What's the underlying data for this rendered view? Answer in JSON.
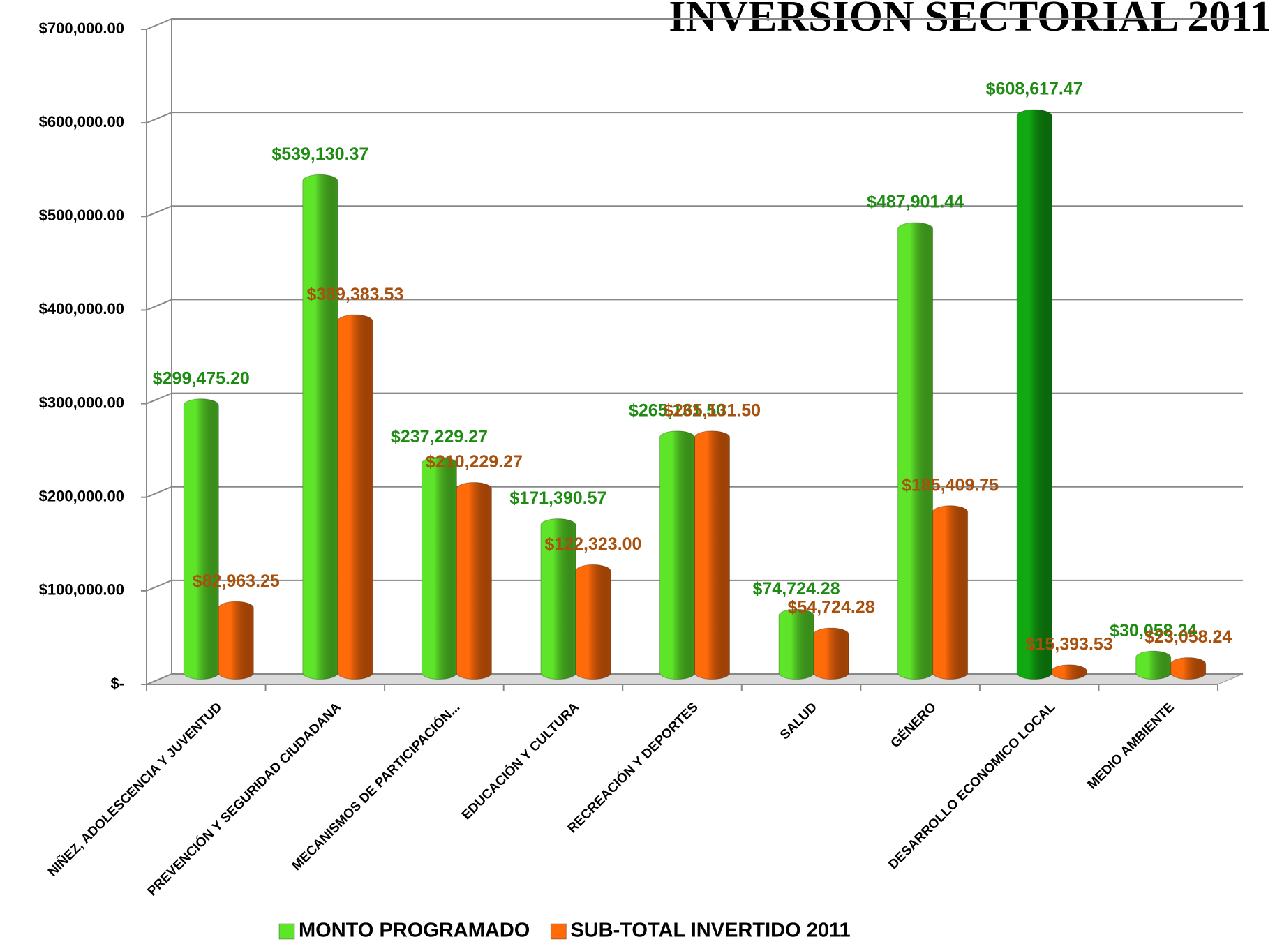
{
  "chart_data": {
    "type": "bar",
    "title": "INVERSION SECTORIAL 2011",
    "categories": [
      "NIÑEZ, ADOLESCENCIA Y JUVENTUD",
      "PREVENCIÓN Y SEGURIDAD CIUDADANA",
      "MECANISMOS DE PARTICIPACIÓN...",
      "EDUCACIÓN Y CULTURA",
      "RECREACIÓN Y DEPORTES",
      "SALUD",
      "GÉNERO",
      "DESARROLLO ECONOMICO  LOCAL",
      "MEDIO AMBIENTE"
    ],
    "series": [
      {
        "name": "MONTO PROGRAMADO",
        "color": "#5ee52a",
        "colors": [
          "#5ee52a",
          "#5ee52a",
          "#5ee52a",
          "#5ee52a",
          "#5ee52a",
          "#5ee52a",
          "#5ee52a",
          "#12a812",
          "#5ee52a"
        ],
        "label_color": "#1e8c12",
        "values": [
          299475.2,
          539130.37,
          237229.27,
          171390.57,
          265131.5,
          74724.28,
          487901.44,
          608617.47,
          30058.24
        ],
        "value_labels": [
          "$299,475.20",
          "$539,130.37",
          "$237,229.27",
          "$171,390.57",
          "$265,131.50",
          "$74,724.28",
          "$487,901.44",
          "$608,617.47",
          "$30,058.24"
        ]
      },
      {
        "name": "SUB-TOTAL INVERTIDO 2011",
        "color": "#ff6a0a",
        "label_color": "#a8500e",
        "values": [
          82963.25,
          389383.53,
          210229.27,
          122323.0,
          265131.5,
          54724.28,
          185409.75,
          15393.53,
          23058.24
        ],
        "value_labels": [
          "$82,963.25",
          "$389,383.53",
          "$210,229.27",
          "$122,323.00",
          "$265,131.50",
          "$54,724.28",
          "$185,409.75",
          "$15,393.53",
          "$23,058.24"
        ]
      }
    ],
    "ylim": [
      0,
      700000
    ],
    "yticks": [
      {
        "value": 0,
        "label": "$-"
      },
      {
        "value": 100000,
        "label": "$100,000.00"
      },
      {
        "value": 200000,
        "label": "$200,000.00"
      },
      {
        "value": 300000,
        "label": "$300,000.00"
      },
      {
        "value": 400000,
        "label": "$400,000.00"
      },
      {
        "value": 500000,
        "label": "$500,000.00"
      },
      {
        "value": 600000,
        "label": "$600,000.00"
      },
      {
        "value": 700000,
        "label": "$700,000.00"
      }
    ],
    "grid": true,
    "legend": "bottom"
  }
}
